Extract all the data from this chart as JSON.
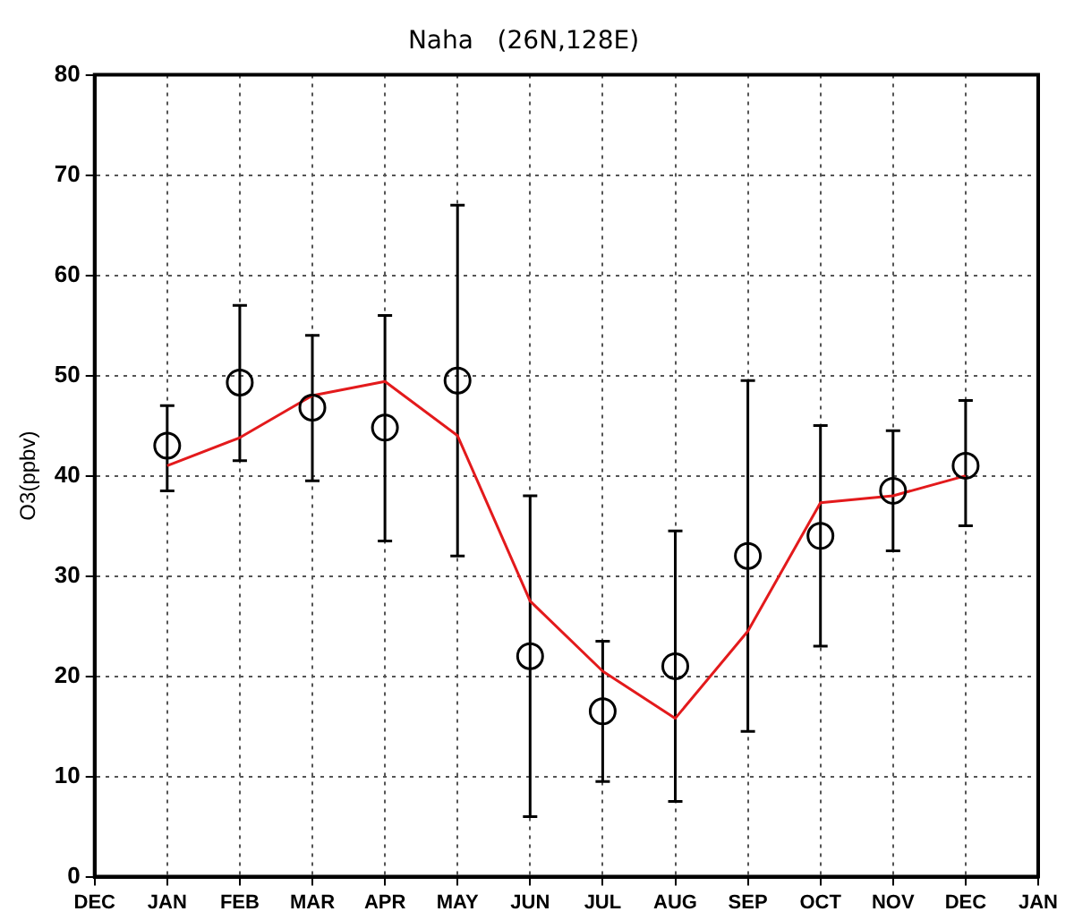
{
  "chart_data": {
    "type": "scatter",
    "title": "Naha   (26N,128E)",
    "ylabel": "O3(ppbv)",
    "categories": [
      "DEC",
      "JAN",
      "FEB",
      "MAR",
      "APR",
      "MAY",
      "JUN",
      "JUL",
      "AUG",
      "SEP",
      "OCT",
      "NOV",
      "DEC",
      "JAN"
    ],
    "series": [
      {
        "color": "#000000",
        "marker": "circle",
        "values": [
          null,
          43,
          49.3,
          46.8,
          44.8,
          49.5,
          22,
          16.5,
          21,
          32,
          34,
          38.5,
          41,
          null
        ],
        "errors": [
          null,
          [
            38.5,
            47
          ],
          [
            41.5,
            57
          ],
          [
            39.5,
            54
          ],
          [
            33.5,
            56
          ],
          [
            32,
            67
          ],
          [
            6,
            38
          ],
          [
            9.5,
            23.5
          ],
          [
            7.5,
            34.5
          ],
          [
            14.5,
            49.5
          ],
          [
            23,
            45
          ],
          [
            32.5,
            44.5
          ],
          [
            35,
            47.5
          ],
          null
        ]
      },
      {
        "type": "line",
        "color": "#e31a1c",
        "marker": "none",
        "values": [
          null,
          41,
          43.8,
          48,
          49.4,
          44,
          27.5,
          20.5,
          15.8,
          24.5,
          37.3,
          38,
          40,
          null
        ]
      }
    ],
    "ylim": [
      0,
      80
    ],
    "yticks": [
      0,
      10,
      20,
      30,
      40,
      50,
      60,
      70,
      80
    ],
    "grid": true,
    "legend": false
  }
}
